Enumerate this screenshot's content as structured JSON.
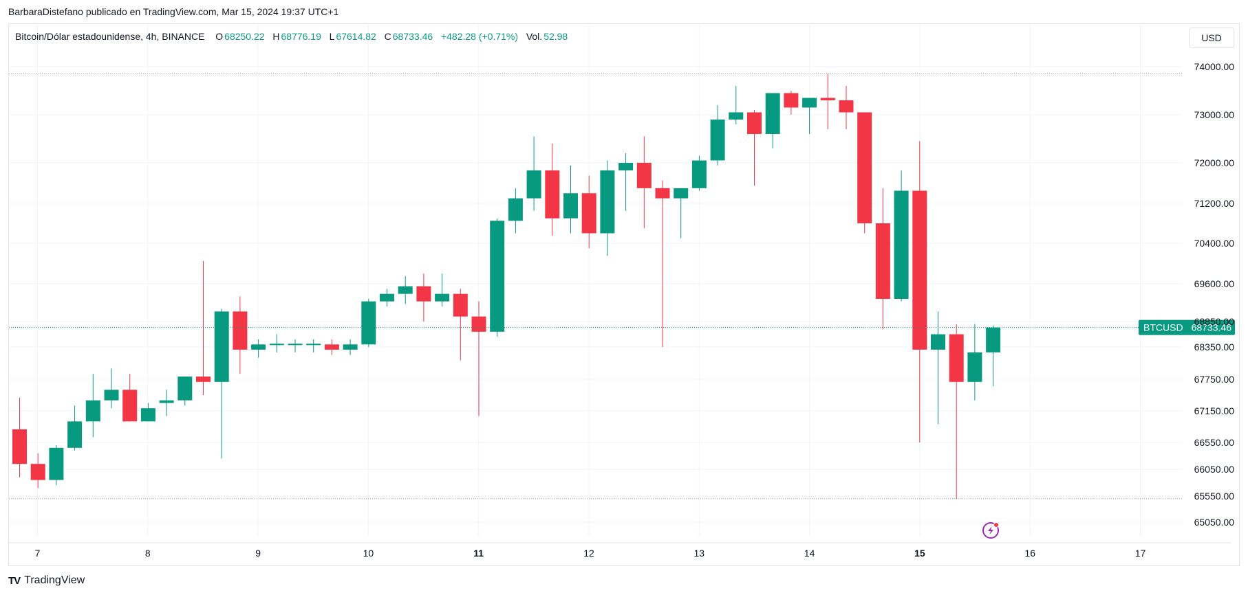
{
  "caption": "BarbaraDistefano publicado en TradingView.com, Mar 15, 2024 19:37 UTC+1",
  "legend": {
    "title": "Bitcoin/Dólar estadounidense, 4h, BINANCE",
    "o_label": "O",
    "o_value": "68250.22",
    "h_label": "H",
    "h_value": "68776.19",
    "l_label": "L",
    "l_value": "67614.82",
    "c_label": "C",
    "c_value": "68733.46",
    "change": "+482.28 (+0.71%)",
    "vol_label": "Vol.",
    "vol_value": "52.98"
  },
  "currency_button": "USD",
  "footer": {
    "brand": "TradingView",
    "logo_mark": "TV"
  },
  "colors": {
    "up": "#089981",
    "down": "#f23645",
    "grid": "#f0f3fa",
    "text": "#131722",
    "dotted": "#9598a1",
    "marker": "#9c27b0"
  },
  "icons": {
    "lightning": "lightning-icon",
    "logo": "tradingview-logo-icon"
  },
  "chart_data": {
    "type": "candlestick",
    "symbol": "Bitcoin/Dólar estadounidense",
    "interval": "4h",
    "exchange": "BINANCE",
    "y_tick_labels": [
      "74000.00",
      "73000.00",
      "72000.00",
      "71200.00",
      "70400.00",
      "69600.00",
      "68850.00",
      "68350.00",
      "67750.00",
      "67150.00",
      "66550.00",
      "66050.00",
      "65550.00",
      "65050.00"
    ],
    "y_ticks": [
      74000,
      73000,
      72000,
      71200,
      70400,
      69600,
      68850,
      68350,
      67750,
      67150,
      66550,
      66050,
      65550,
      65050
    ],
    "x_tick_labels": [
      "7",
      "8",
      "9",
      "10",
      "11",
      "12",
      "13",
      "14",
      "15",
      "16",
      "17"
    ],
    "x_ticks_bold": [
      "11",
      "15"
    ],
    "price_line": {
      "label": "BTCUSD",
      "value": 68733.46
    },
    "dotted_lines": [
      73850,
      65500
    ],
    "candles": [
      {
        "o": 66800,
        "h": 67400,
        "l": 65900,
        "c": 66150
      },
      {
        "o": 66150,
        "h": 66350,
        "l": 65700,
        "c": 65850
      },
      {
        "o": 65850,
        "h": 66500,
        "l": 65750,
        "c": 66450
      },
      {
        "o": 66450,
        "h": 67250,
        "l": 66400,
        "c": 66950
      },
      {
        "o": 66950,
        "h": 67850,
        "l": 66650,
        "c": 67350
      },
      {
        "o": 67350,
        "h": 67950,
        "l": 67200,
        "c": 67550
      },
      {
        "o": 67550,
        "h": 67850,
        "l": 66950,
        "c": 66950
      },
      {
        "o": 66950,
        "h": 67300,
        "l": 66950,
        "c": 67200
      },
      {
        "o": 67300,
        "h": 67550,
        "l": 67050,
        "c": 67350
      },
      {
        "o": 67350,
        "h": 67800,
        "l": 67250,
        "c": 67800
      },
      {
        "o": 67800,
        "h": 70050,
        "l": 67450,
        "c": 67700
      },
      {
        "o": 67700,
        "h": 69100,
        "l": 66250,
        "c": 69050
      },
      {
        "o": 69050,
        "h": 69350,
        "l": 67850,
        "c": 68300
      },
      {
        "o": 68300,
        "h": 68500,
        "l": 68150,
        "c": 68400
      },
      {
        "o": 68400,
        "h": 68600,
        "l": 68250,
        "c": 68400
      },
      {
        "o": 68400,
        "h": 68500,
        "l": 68250,
        "c": 68400
      },
      {
        "o": 68400,
        "h": 68500,
        "l": 68250,
        "c": 68400
      },
      {
        "o": 68400,
        "h": 68500,
        "l": 68200,
        "c": 68300
      },
      {
        "o": 68300,
        "h": 68500,
        "l": 68200,
        "c": 68400
      },
      {
        "o": 68400,
        "h": 69300,
        "l": 68350,
        "c": 69250
      },
      {
        "o": 69250,
        "h": 69500,
        "l": 69150,
        "c": 69400
      },
      {
        "o": 69400,
        "h": 69750,
        "l": 69200,
        "c": 69550
      },
      {
        "o": 69550,
        "h": 69800,
        "l": 68850,
        "c": 69250
      },
      {
        "o": 69250,
        "h": 69800,
        "l": 69150,
        "c": 69400
      },
      {
        "o": 69400,
        "h": 69500,
        "l": 68100,
        "c": 68950
      },
      {
        "o": 68950,
        "h": 69250,
        "l": 67050,
        "c": 68650
      },
      {
        "o": 68650,
        "h": 70900,
        "l": 68550,
        "c": 70850
      },
      {
        "o": 70850,
        "h": 71500,
        "l": 70600,
        "c": 71300
      },
      {
        "o": 71300,
        "h": 72550,
        "l": 71050,
        "c": 71850
      },
      {
        "o": 71850,
        "h": 72400,
        "l": 70550,
        "c": 70900
      },
      {
        "o": 70900,
        "h": 71950,
        "l": 70600,
        "c": 71400
      },
      {
        "o": 71400,
        "h": 71750,
        "l": 70300,
        "c": 70600
      },
      {
        "o": 70600,
        "h": 72050,
        "l": 70150,
        "c": 71850
      },
      {
        "o": 71850,
        "h": 72200,
        "l": 71050,
        "c": 72000
      },
      {
        "o": 72000,
        "h": 72550,
        "l": 70700,
        "c": 71500
      },
      {
        "o": 71500,
        "h": 71650,
        "l": 68350,
        "c": 71300
      },
      {
        "o": 71300,
        "h": 71500,
        "l": 70500,
        "c": 71500
      },
      {
        "o": 71500,
        "h": 72150,
        "l": 71450,
        "c": 72050
      },
      {
        "o": 72050,
        "h": 73200,
        "l": 71950,
        "c": 72900
      },
      {
        "o": 72900,
        "h": 73600,
        "l": 72800,
        "c": 73050
      },
      {
        "o": 73050,
        "h": 73100,
        "l": 71550,
        "c": 72600
      },
      {
        "o": 72600,
        "h": 73450,
        "l": 72300,
        "c": 73450
      },
      {
        "o": 73450,
        "h": 73500,
        "l": 73000,
        "c": 73150
      },
      {
        "o": 73150,
        "h": 73350,
        "l": 72600,
        "c": 73350
      },
      {
        "o": 73350,
        "h": 73850,
        "l": 72700,
        "c": 73300
      },
      {
        "o": 73300,
        "h": 73600,
        "l": 72700,
        "c": 73050
      },
      {
        "o": 73050,
        "h": 73050,
        "l": 70600,
        "c": 70800
      },
      {
        "o": 70800,
        "h": 71500,
        "l": 68700,
        "c": 69300
      },
      {
        "o": 69300,
        "h": 71850,
        "l": 69250,
        "c": 71450
      },
      {
        "o": 71450,
        "h": 72450,
        "l": 66550,
        "c": 68300
      },
      {
        "o": 68300,
        "h": 69050,
        "l": 66900,
        "c": 68600
      },
      {
        "o": 68600,
        "h": 68800,
        "l": 65500,
        "c": 67700
      },
      {
        "o": 67700,
        "h": 68800,
        "l": 67350,
        "c": 68250
      },
      {
        "o": 68250,
        "h": 68776.19,
        "l": 67614.82,
        "c": 68733.46
      }
    ]
  }
}
